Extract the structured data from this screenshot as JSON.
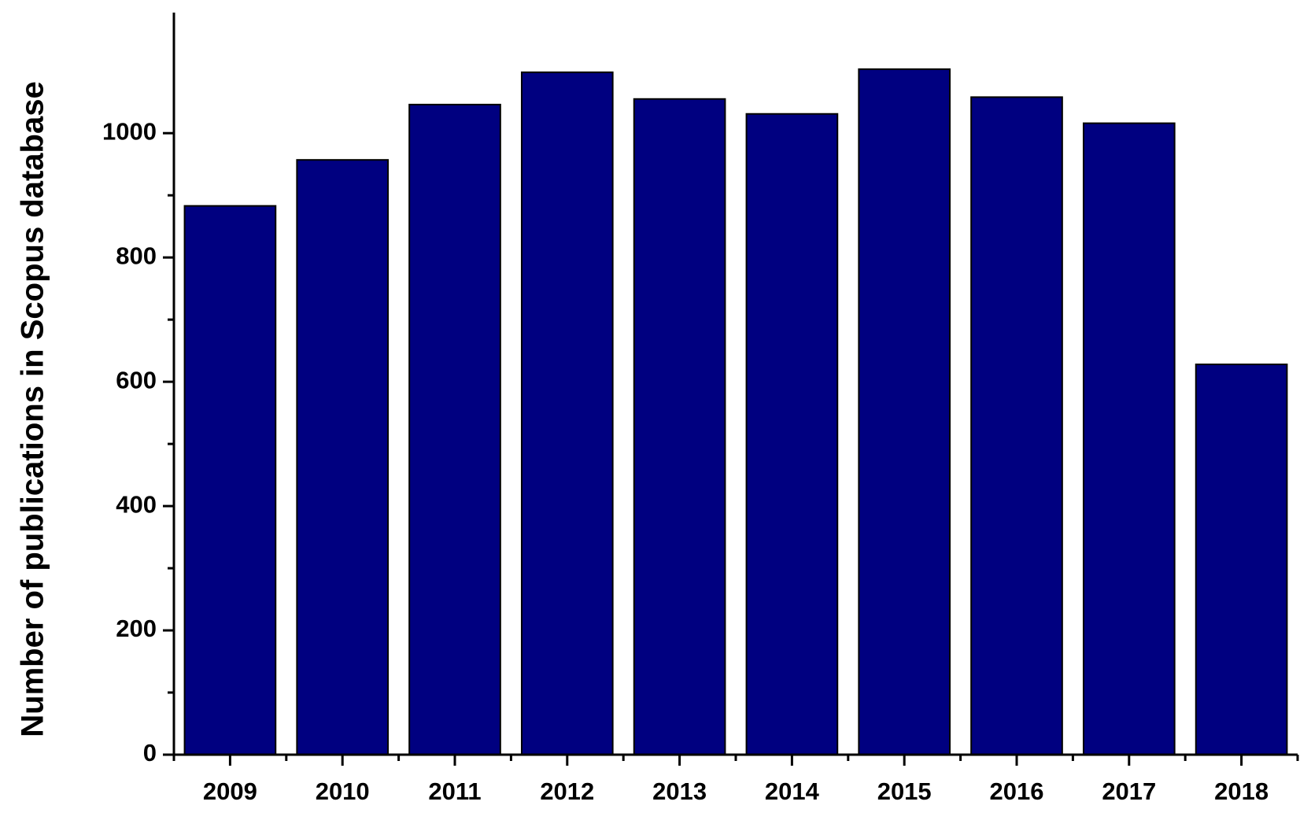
{
  "chart_data": {
    "type": "bar",
    "y_label": "Number of publications in Scopus database",
    "categories": [
      "2009",
      "2010",
      "2011",
      "2012",
      "2013",
      "2014",
      "2015",
      "2016",
      "2017",
      "2018"
    ],
    "values": [
      883,
      957,
      1046,
      1098,
      1055,
      1031,
      1103,
      1058,
      1016,
      628
    ],
    "color": "#000080",
    "ylim": [
      0,
      1194
    ],
    "yticks": [
      0,
      200,
      400,
      600,
      800,
      1000
    ],
    "grid": false
  }
}
